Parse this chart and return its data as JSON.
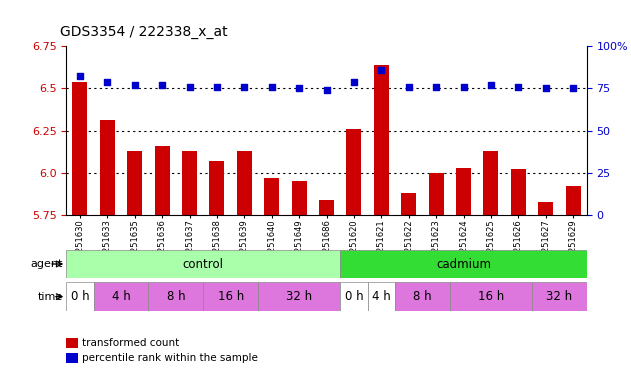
{
  "title": "GDS3354 / 222338_x_at",
  "samples": [
    "GSM251630",
    "GSM251633",
    "GSM251635",
    "GSM251636",
    "GSM251637",
    "GSM251638",
    "GSM251639",
    "GSM251640",
    "GSM251649",
    "GSM251686",
    "GSM251620",
    "GSM251621",
    "GSM251622",
    "GSM251623",
    "GSM251624",
    "GSM251625",
    "GSM251626",
    "GSM251627",
    "GSM251629"
  ],
  "bar_values": [
    6.54,
    6.31,
    6.13,
    6.16,
    6.13,
    6.07,
    6.13,
    5.97,
    5.95,
    5.84,
    6.26,
    6.64,
    5.88,
    6.0,
    6.03,
    6.13,
    6.02,
    5.83,
    5.92
  ],
  "dot_values": [
    82,
    79,
    77,
    77,
    76,
    76,
    76,
    76,
    75,
    74,
    79,
    86,
    76,
    76,
    76,
    77,
    76,
    75,
    75
  ],
  "ylim": [
    5.75,
    6.75
  ],
  "ylim_right": [
    0,
    100
  ],
  "yticks_left": [
    5.75,
    6.0,
    6.25,
    6.5,
    6.75
  ],
  "yticks_right": [
    0,
    25,
    50,
    75,
    100
  ],
  "bar_color": "#cc0000",
  "dot_color": "#0000cc",
  "grid_values": [
    6.0,
    6.25,
    6.5
  ],
  "agent_groups": [
    {
      "label": "control",
      "start": 0,
      "end": 10,
      "color": "#aaffaa"
    },
    {
      "label": "cadmium",
      "start": 10,
      "end": 19,
      "color": "#33dd33"
    }
  ],
  "time_periods": [
    {
      "label": "0 h",
      "start": 0,
      "end": 1,
      "color": "#ffffff"
    },
    {
      "label": "4 h",
      "start": 1,
      "end": 3,
      "color": "#dd77dd"
    },
    {
      "label": "8 h",
      "start": 3,
      "end": 5,
      "color": "#dd77dd"
    },
    {
      "label": "16 h",
      "start": 5,
      "end": 7,
      "color": "#dd77dd"
    },
    {
      "label": "32 h",
      "start": 7,
      "end": 10,
      "color": "#dd77dd"
    },
    {
      "label": "0 h",
      "start": 10,
      "end": 11,
      "color": "#ffffff"
    },
    {
      "label": "4 h",
      "start": 11,
      "end": 12,
      "color": "#ffffff"
    },
    {
      "label": "8 h",
      "start": 12,
      "end": 14,
      "color": "#dd77dd"
    },
    {
      "label": "16 h",
      "start": 14,
      "end": 17,
      "color": "#dd77dd"
    },
    {
      "label": "32 h",
      "start": 17,
      "end": 19,
      "color": "#dd77dd"
    }
  ],
  "legend_bar_label": "transformed count",
  "legend_dot_label": "percentile rank within the sample",
  "bg_color": "#ffffff",
  "bar_color_r": "#cc0000",
  "dot_color_b": "#0000cc",
  "tick_color_left": "#cc0000",
  "tick_color_right": "#0000cc"
}
